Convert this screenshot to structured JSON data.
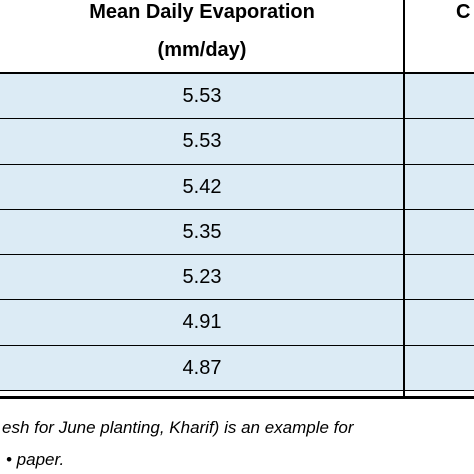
{
  "table": {
    "header_col1_line1": "Mean Daily Evaporation",
    "header_col1_line2": "(mm/day)",
    "header_col2_partial": "C",
    "values": [
      "5.53",
      "5.53",
      "5.42",
      "5.35",
      "5.23",
      "4.91",
      "4.87"
    ]
  },
  "caption": {
    "line1": "esh for June planting, Kharif) is an example for",
    "line2": "• paper."
  },
  "colors": {
    "row_fill": "#dcebf5",
    "rule": "#000000"
  }
}
